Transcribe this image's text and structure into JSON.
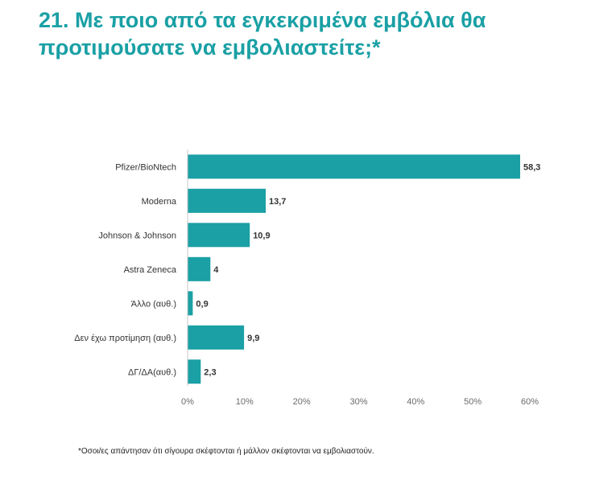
{
  "title": "21. Με ποιο από τα εγκεκριμένα εμβόλια θα προτιμούσατε να εμβολιαστείτε;*",
  "footnote": "*Οσοι/ες απάντησαν ότι σίγουρα σκέφτονται ή μάλλον σκέφτονται να εμβολιαστούν.",
  "colors": {
    "accent": "#1aa0a5",
    "bar": "#1aa0a5",
    "axis": "#c8c8c8",
    "text": "#333333"
  },
  "chart_data": {
    "type": "bar",
    "orientation": "horizontal",
    "title": "21. Με ποιο από τα εγκεκριμένα εμβόλια θα προτιμούσατε να εμβολιαστείτε;*",
    "categories": [
      "Pfizer/BioNtech",
      "Moderna",
      "Johnson & Johnson",
      "Astra Zeneca",
      "Άλλο (αυθ.)",
      "Δεν έχω προτίμηση (αυθ.)",
      "ΔΓ/ΔΑ(αυθ.)"
    ],
    "values": [
      58.3,
      13.7,
      10.9,
      4,
      0.9,
      9.9,
      2.3
    ],
    "value_labels": [
      "58,3",
      "13,7",
      "10,9",
      "4",
      "0,9",
      "9,9",
      "2,3"
    ],
    "xlabel": "",
    "ylabel": "",
    "xlim": [
      0,
      60
    ],
    "ticks": [
      0,
      10,
      20,
      30,
      40,
      50,
      60
    ],
    "tick_labels": [
      "0%",
      "10%",
      "20%",
      "30%",
      "40%",
      "50%",
      "60%"
    ],
    "grid": false,
    "legend": "none"
  }
}
